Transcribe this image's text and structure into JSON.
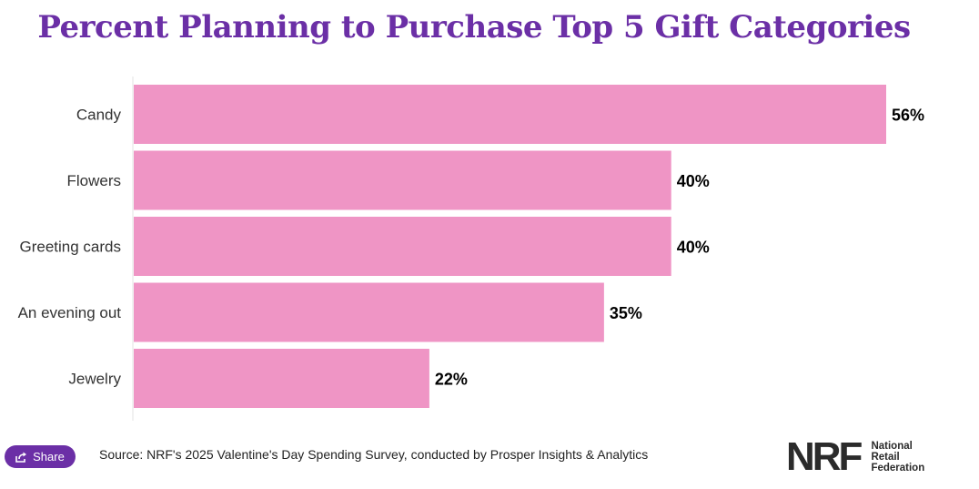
{
  "chart_data": {
    "type": "bar",
    "orientation": "horizontal",
    "title": "Percent Planning to Purchase Top 5 Gift Categories",
    "categories": [
      "Candy",
      "Flowers",
      "Greeting cards",
      "An evening out",
      "Jewelry"
    ],
    "values": [
      56,
      40,
      40,
      35,
      22
    ],
    "data_labels": [
      "56%",
      "40%",
      "40%",
      "35%",
      "22%"
    ],
    "unit": "%",
    "xlim": [
      0,
      56
    ],
    "grid": false,
    "bar_color": "#ef95c5",
    "label_color": "#000000"
  },
  "share_label": "Share",
  "source_text": "Source: NRF's 2025 Valentine's Day Spending Survey, conducted by Prosper Insights & Analytics",
  "logo": {
    "mark": "NRF",
    "lines": [
      "National",
      "Retail",
      "Federation"
    ]
  },
  "colors": {
    "title": "#6b2fa6",
    "accent": "#6b2fa6"
  }
}
